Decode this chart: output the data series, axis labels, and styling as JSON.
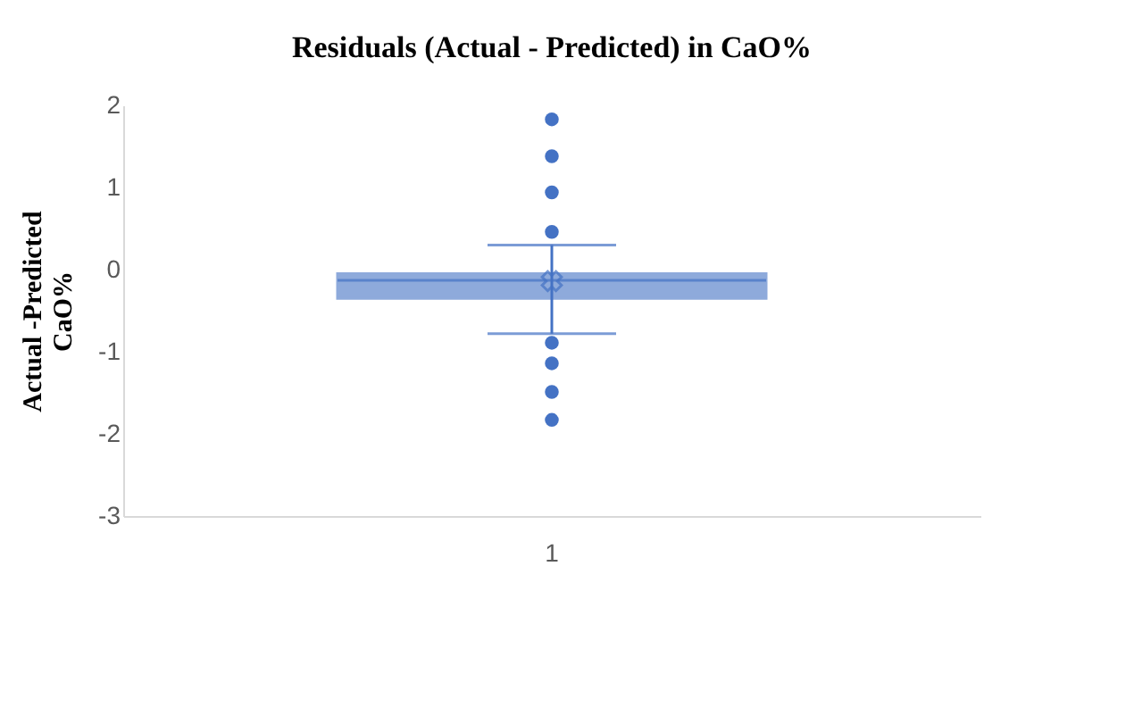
{
  "chart_data": {
    "type": "box",
    "title": "Residuals (Actual - Predicted) in CaO%",
    "ylabel": "Actual -Predicted CaO%",
    "categories": [
      "1"
    ],
    "boxes": [
      {
        "low": -0.78,
        "q1": -0.35,
        "median": -0.13,
        "q3": -0.05,
        "high": 0.3,
        "mean": -0.14,
        "outliers": [
          1.83,
          1.38,
          0.94,
          0.46,
          -0.89,
          -1.14,
          -1.49,
          -1.83
        ]
      }
    ],
    "color": "#4472c4",
    "ylim": [
      -3,
      2
    ],
    "yticks": [
      -3,
      -2,
      -1,
      0,
      1,
      2
    ],
    "grid": false
  }
}
